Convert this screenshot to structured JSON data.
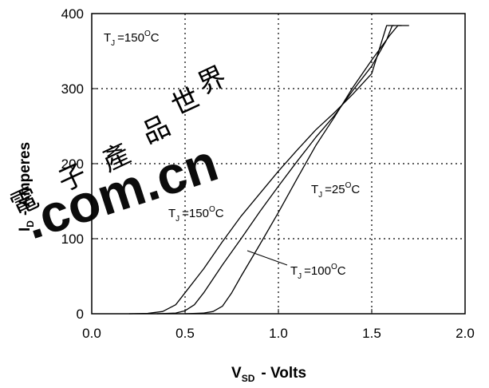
{
  "chart_data": {
    "type": "line",
    "xlabel": {
      "main": "V",
      "sub": "SD",
      "rest": "-  Volts"
    },
    "ylabel": {
      "main": "I",
      "sub": "D",
      "rest": "- Amperes"
    },
    "xlim": [
      0,
      2.0
    ],
    "ylim": [
      0,
      400
    ],
    "xticks": [
      "0.0",
      "0.5",
      "1.0",
      "1.5",
      "2.0"
    ],
    "yticks": [
      "0",
      "100",
      "200",
      "300",
      "400"
    ],
    "grid": true,
    "series": [
      {
        "name": "TJ=150°C",
        "points": [
          [
            0.2,
            0
          ],
          [
            0.3,
            0.5
          ],
          [
            0.38,
            3
          ],
          [
            0.45,
            12
          ],
          [
            0.5,
            28
          ],
          [
            0.6,
            60
          ],
          [
            0.7,
            96
          ],
          [
            0.8,
            130
          ],
          [
            0.9,
            160
          ],
          [
            1.0,
            190
          ],
          [
            1.1,
            218
          ],
          [
            1.2,
            245
          ],
          [
            1.3,
            268
          ],
          [
            1.4,
            293
          ],
          [
            1.5,
            320
          ],
          [
            1.58,
            384
          ],
          [
            1.62,
            384
          ]
        ]
      },
      {
        "name": "TJ=100°C",
        "points": [
          [
            0.35,
            0
          ],
          [
            0.45,
            1
          ],
          [
            0.5,
            4
          ],
          [
            0.55,
            12
          ],
          [
            0.6,
            28
          ],
          [
            0.7,
            65
          ],
          [
            0.8,
            100
          ],
          [
            0.9,
            136
          ],
          [
            1.0,
            170
          ],
          [
            1.1,
            203
          ],
          [
            1.2,
            235
          ],
          [
            1.3,
            264
          ],
          [
            1.4,
            298
          ],
          [
            1.5,
            330
          ],
          [
            1.58,
            365
          ],
          [
            1.61,
            384
          ],
          [
            1.66,
            384
          ]
        ]
      },
      {
        "name": "TJ=25°C",
        "points": [
          [
            0.5,
            0
          ],
          [
            0.6,
            1
          ],
          [
            0.65,
            3
          ],
          [
            0.7,
            10
          ],
          [
            0.75,
            28
          ],
          [
            0.8,
            50
          ],
          [
            0.9,
            92
          ],
          [
            1.0,
            135
          ],
          [
            1.1,
            180
          ],
          [
            1.2,
            224
          ],
          [
            1.3,
            262
          ],
          [
            1.4,
            302
          ],
          [
            1.5,
            338
          ],
          [
            1.6,
            372
          ],
          [
            1.64,
            384
          ],
          [
            1.7,
            384
          ]
        ]
      }
    ],
    "annotations": [
      {
        "main": "T",
        "sub": "J",
        "rest": "=150",
        "sup": "O",
        "tail": "C"
      },
      {
        "main": "T",
        "sub": "J",
        "rest": "=150",
        "sup": "O",
        "tail": "C"
      },
      {
        "main": "T",
        "sub": "J",
        "rest": "=25",
        "sup": "O",
        "tail": "C"
      },
      {
        "main": "T",
        "sub": "J",
        "rest": "=100",
        "sup": "O",
        "tail": "C"
      }
    ],
    "watermark": ".com.cn",
    "line_color": "#000000",
    "grid_color": "#000000",
    "watermark_color": "#e8413c"
  }
}
